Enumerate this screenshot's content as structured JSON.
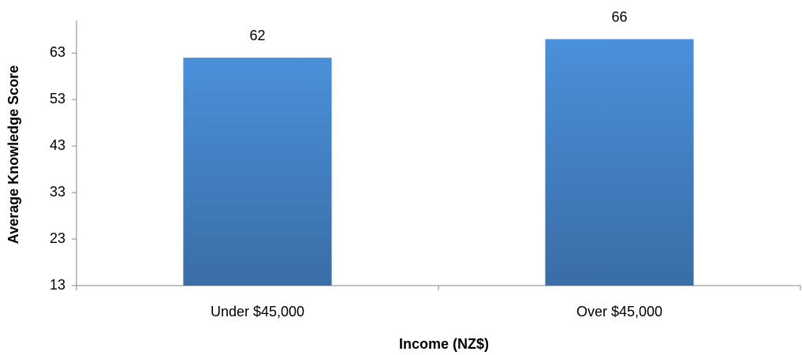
{
  "chart_data": {
    "type": "bar",
    "x_label": "Income (NZ$)",
    "y_label": "Average Knowledge Score",
    "categories": [
      "Under $45,000",
      "Over $45,000"
    ],
    "values": [
      62,
      66
    ],
    "color": "#4a8fd6",
    "ylim": [
      13,
      70
    ],
    "yticks": [
      13,
      23,
      33,
      43,
      53,
      63
    ],
    "grid": false
  }
}
